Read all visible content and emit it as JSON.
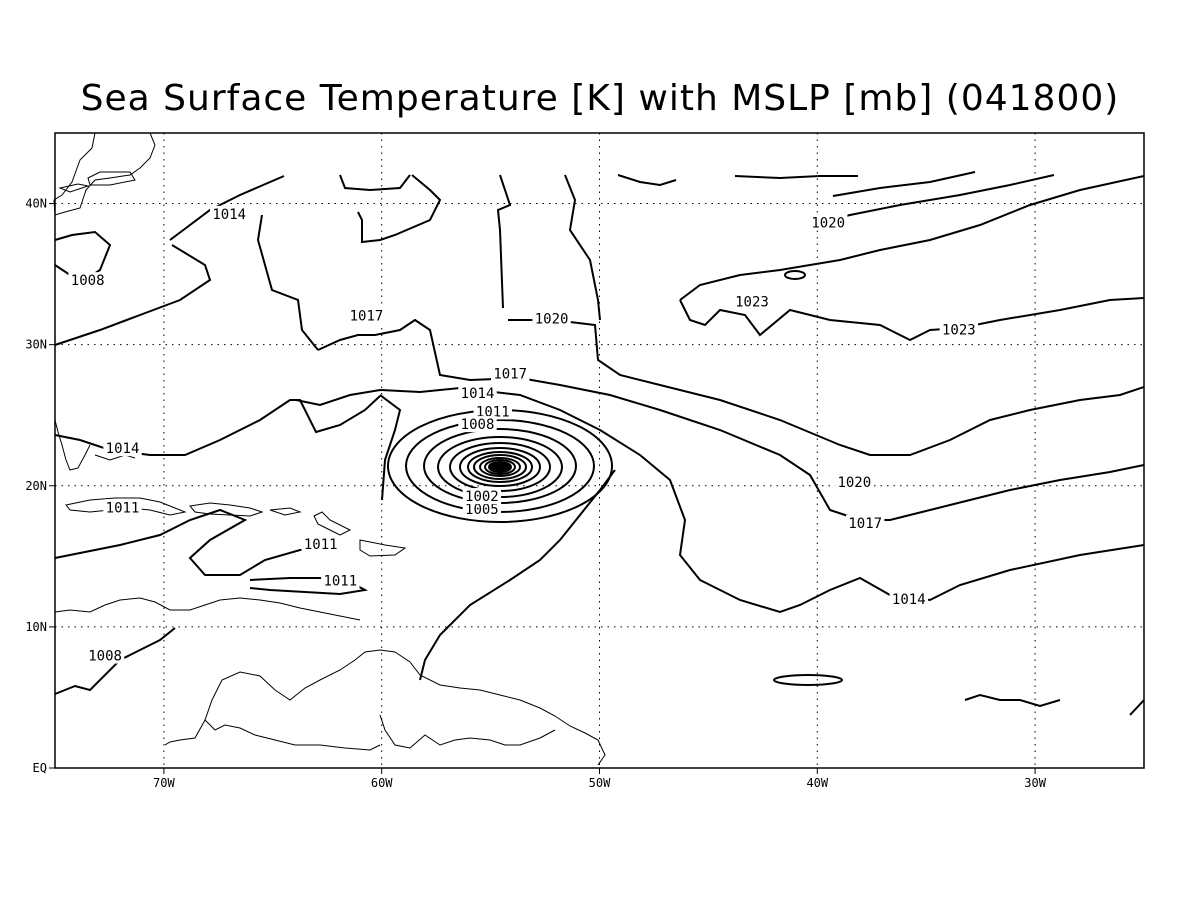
{
  "figure": {
    "title": "Sea Surface Temperature [K] with MSLP [mb] (041800)"
  },
  "axes": {
    "x_ticks": [
      {
        "lon": -70,
        "label": "70W"
      },
      {
        "lon": -60,
        "label": "60W"
      },
      {
        "lon": -50,
        "label": "50W"
      },
      {
        "lon": -40,
        "label": "40W"
      },
      {
        "lon": -30,
        "label": "30W"
      }
    ],
    "y_ticks": [
      {
        "lat": 0,
        "label": "EQ"
      },
      {
        "lat": 10,
        "label": "10N"
      },
      {
        "lat": 20,
        "label": "20N"
      },
      {
        "lat": 30,
        "label": "30N"
      },
      {
        "lat": 40,
        "label": "40N"
      }
    ],
    "lon_range": [
      -75,
      -25
    ],
    "lat_range": [
      0,
      45
    ],
    "grid": "dotted"
  },
  "contour_labels": [
    {
      "text": "1014",
      "lon": -67.0,
      "lat": 39.2
    },
    {
      "text": "1008",
      "lon": -73.5,
      "lat": 34.5
    },
    {
      "text": "1017",
      "lon": -60.7,
      "lat": 32.0
    },
    {
      "text": "1020",
      "lon": -52.2,
      "lat": 31.8
    },
    {
      "text": "1023",
      "lon": -43.0,
      "lat": 33.0
    },
    {
      "text": "1020",
      "lon": -39.5,
      "lat": 38.6
    },
    {
      "text": "1023",
      "lon": -33.5,
      "lat": 31.0
    },
    {
      "text": "1017",
      "lon": -54.1,
      "lat": 27.9
    },
    {
      "text": "1014",
      "lon": -55.6,
      "lat": 26.5
    },
    {
      "text": "1011",
      "lon": -54.9,
      "lat": 25.2
    },
    {
      "text": "1008",
      "lon": -55.6,
      "lat": 24.3
    },
    {
      "text": "1005",
      "lon": -55.4,
      "lat": 18.3
    },
    {
      "text": "1002",
      "lon": -55.4,
      "lat": 19.2
    },
    {
      "text": "1014",
      "lon": -71.9,
      "lat": 22.6
    },
    {
      "text": "1011",
      "lon": -71.9,
      "lat": 18.4
    },
    {
      "text": "1011",
      "lon": -62.8,
      "lat": 15.8
    },
    {
      "text": "1011",
      "lon": -61.9,
      "lat": 13.2
    },
    {
      "text": "1008",
      "lon": -72.7,
      "lat": 7.9
    },
    {
      "text": "1020",
      "lon": -38.3,
      "lat": 20.2
    },
    {
      "text": "1017",
      "lon": -37.8,
      "lat": 17.3
    },
    {
      "text": "1014",
      "lon": -35.8,
      "lat": 11.9
    }
  ],
  "features": {
    "cyclone_center": {
      "lon": -54.6,
      "lat": 21.0,
      "min_pressure_label": "1002"
    }
  }
}
